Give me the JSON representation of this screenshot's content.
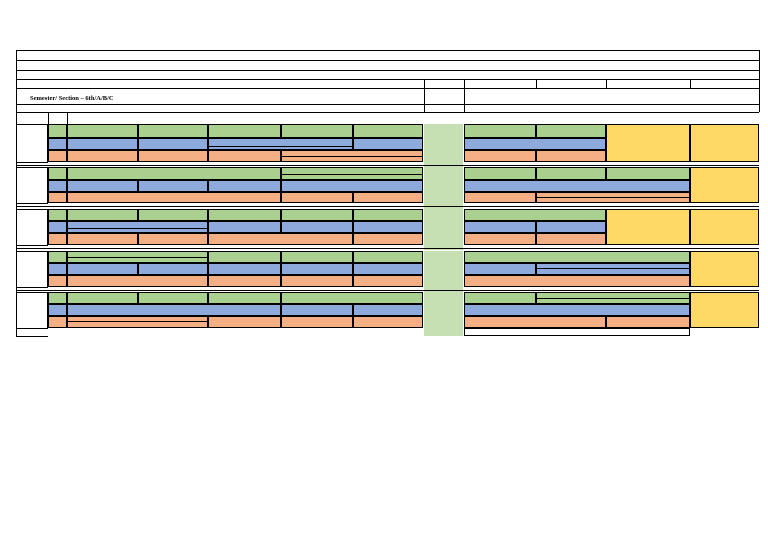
{
  "sheet": {
    "semester_label": "Semester/ Section – 6th/A/B/C"
  },
  "colors": {
    "green": "#a9d08e",
    "blue": "#8ea9db",
    "orange": "#f4b084",
    "yellow": "#ffd966",
    "lunch": "#c6e0b4",
    "grid": "#000000"
  }
}
